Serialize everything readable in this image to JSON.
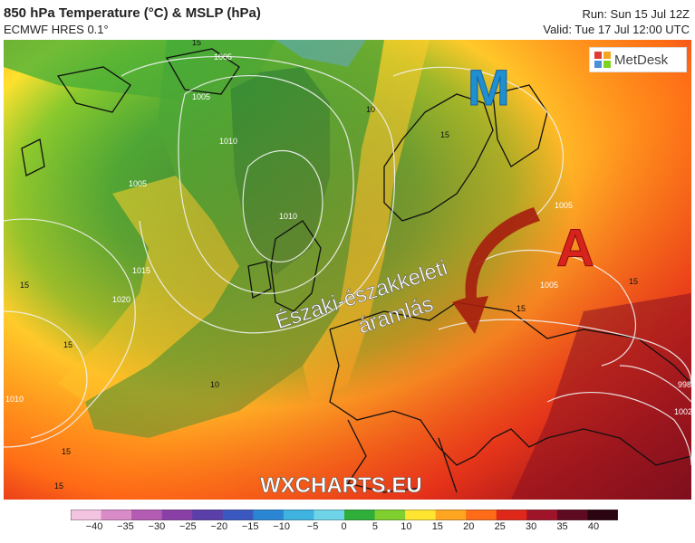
{
  "header": {
    "title": "850 hPa Temperature (°C) & MSLP (hPa)",
    "model": "ECMWF HRES 0.1°",
    "run": "Run: Sun 15 Jul 12Z",
    "valid": "Valid: Tue 17 Jul 12:00 UTC"
  },
  "logo": {
    "text": "MetDesk"
  },
  "map": {
    "low_label": "M",
    "high_label": "A",
    "flow_label_line1": "Északi-északkeleti",
    "flow_label_line2": "áramlás",
    "watermark": "WXCHARTS.EU",
    "isobars": [
      "1005",
      "1005",
      "1010",
      "1010",
      "1005",
      "1015",
      "1020",
      "1005",
      "1005",
      "1010",
      "998",
      "1002"
    ],
    "temperature_labels": [
      "15",
      "10",
      "15",
      "15",
      "10",
      "15",
      "15",
      "15",
      "15",
      "15"
    ],
    "colors": {
      "low": "#1e90d0",
      "high": "#d8231c",
      "arrow": "#a51d0e"
    }
  },
  "colorbar": {
    "ticks": [
      "−40",
      "−35",
      "−30",
      "−25",
      "−20",
      "−15",
      "−10",
      "−5",
      "0",
      "5",
      "10",
      "15",
      "20",
      "25",
      "30",
      "35",
      "40"
    ],
    "colors": [
      "#f2c4e0",
      "#d88bc7",
      "#b45cb4",
      "#8a3fa6",
      "#5b3fa8",
      "#3a58c0",
      "#2a86d2",
      "#3fb3e0",
      "#6fd4e8",
      "#2fae3a",
      "#7fcf2f",
      "#ffe430",
      "#ffa51f",
      "#ff6b16",
      "#e0281a",
      "#a0142a",
      "#5e0a20",
      "#2a0410"
    ]
  }
}
